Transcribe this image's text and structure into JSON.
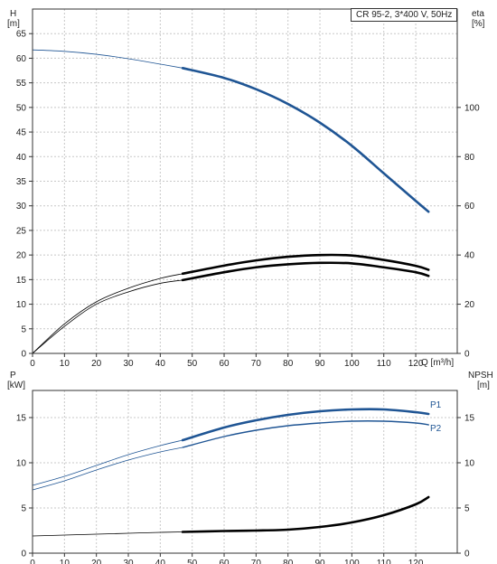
{
  "title": "CR 95-2, 3*400 V, 50Hz",
  "top_panel": {
    "left_axis_label": "H",
    "left_axis_unit": "[m]",
    "right_axis_label": "eta",
    "right_axis_unit": "[%]",
    "x_axis_label": "Q [m³/h]"
  },
  "bottom_panel": {
    "left_axis_label": "P",
    "left_axis_unit": "[kW]",
    "right_axis_label": "NPSH",
    "right_axis_unit": "[m]",
    "series_label_1": "P1",
    "series_label_2": "P2"
  },
  "colors": {
    "head": "#1f5594",
    "efficiency": "#000000",
    "power": "#1f5594",
    "npsh": "#000000",
    "grid": "#c8c8c8",
    "axis": "#333333"
  },
  "chart_data": [
    {
      "type": "line",
      "panel": "top",
      "x_ticks": [
        0,
        10,
        20,
        30,
        40,
        50,
        60,
        70,
        80,
        90,
        100,
        110,
        120
      ],
      "xlim": [
        0,
        133
      ],
      "left_ticks": [
        0,
        5,
        10,
        15,
        20,
        25,
        30,
        35,
        40,
        45,
        50,
        55,
        60,
        65
      ],
      "left_ylim": [
        0,
        70
      ],
      "right_ticks": [
        0,
        20,
        40,
        60,
        80,
        100
      ],
      "right_ylim": [
        0,
        140
      ],
      "grid": true,
      "series": [
        {
          "key": "H",
          "axis": "left",
          "x": [
            0,
            10,
            20,
            30,
            40,
            47
          ],
          "y": [
            61.7,
            61.4,
            60.8,
            59.9,
            58.8,
            58.0
          ],
          "style": "thin"
        },
        {
          "key": "H",
          "axis": "left",
          "x": [
            47,
            60,
            70,
            80,
            90,
            100,
            110,
            120,
            124
          ],
          "y": [
            58.0,
            56.0,
            53.7,
            50.7,
            46.9,
            42.2,
            36.6,
            31.0,
            28.8
          ],
          "style": "thick"
        },
        {
          "key": "eta_1",
          "axis": "right",
          "x": [
            0,
            10,
            20,
            30,
            40,
            47
          ],
          "y": [
            0,
            12,
            21,
            26.5,
            30.5,
            32.4
          ],
          "style": "thin"
        },
        {
          "key": "eta_1",
          "axis": "right",
          "x": [
            47,
            60,
            70,
            80,
            90,
            100,
            110,
            120,
            124
          ],
          "y": [
            32.4,
            35.7,
            37.8,
            39.3,
            40.0,
            39.8,
            38.0,
            35.6,
            34.0
          ],
          "style": "thick"
        },
        {
          "key": "eta_2",
          "axis": "right",
          "x": [
            0,
            10,
            20,
            30,
            40,
            47
          ],
          "y": [
            0,
            11,
            20,
            25,
            28.5,
            29.8
          ],
          "style": "thin"
        },
        {
          "key": "eta_2",
          "axis": "right",
          "x": [
            47,
            60,
            70,
            80,
            90,
            100,
            110,
            120,
            124
          ],
          "y": [
            29.8,
            33.0,
            35.0,
            36.2,
            36.8,
            36.6,
            35.0,
            33.0,
            31.5
          ],
          "style": "thick"
        }
      ]
    },
    {
      "type": "line",
      "panel": "bottom",
      "x_ticks": [
        0,
        10,
        20,
        30,
        40,
        50,
        60,
        70,
        80,
        90,
        100,
        110,
        120
      ],
      "xlim": [
        0,
        133
      ],
      "left_ticks": [
        0,
        5,
        10,
        15
      ],
      "left_ylim": [
        0,
        18
      ],
      "right_ticks": [
        0,
        5,
        10,
        15
      ],
      "right_ylim": [
        0,
        18
      ],
      "grid": true,
      "series": [
        {
          "name": "P1",
          "axis": "left",
          "x": [
            0,
            10,
            20,
            30,
            40,
            47
          ],
          "y": [
            7.5,
            8.5,
            9.7,
            10.9,
            11.9,
            12.5
          ],
          "style": "thin"
        },
        {
          "name": "P1",
          "axis": "left",
          "x": [
            47,
            60,
            70,
            80,
            90,
            100,
            110,
            120,
            124
          ],
          "y": [
            12.5,
            13.9,
            14.7,
            15.3,
            15.7,
            15.9,
            15.9,
            15.6,
            15.4
          ],
          "style": "thick"
        },
        {
          "name": "P2",
          "axis": "left",
          "x": [
            0,
            10,
            20,
            30,
            40,
            47
          ],
          "y": [
            7.0,
            8.0,
            9.2,
            10.3,
            11.2,
            11.7
          ],
          "style": "thin"
        },
        {
          "name": "P2",
          "axis": "left",
          "x": [
            47,
            60,
            70,
            80,
            90,
            100,
            110,
            120,
            124
          ],
          "y": [
            11.7,
            12.9,
            13.6,
            14.1,
            14.4,
            14.6,
            14.6,
            14.4,
            14.2
          ],
          "style": "medium"
        },
        {
          "key": "NPSH",
          "axis": "right",
          "x": [
            0,
            10,
            20,
            30,
            40,
            47
          ],
          "y": [
            1.9,
            2.0,
            2.1,
            2.2,
            2.3,
            2.35
          ],
          "style": "thin"
        },
        {
          "key": "NPSH",
          "axis": "right",
          "x": [
            47,
            60,
            70,
            80,
            90,
            100,
            110,
            120,
            124
          ],
          "y": [
            2.35,
            2.45,
            2.5,
            2.6,
            2.9,
            3.4,
            4.2,
            5.4,
            6.2
          ],
          "style": "thick"
        }
      ]
    }
  ]
}
